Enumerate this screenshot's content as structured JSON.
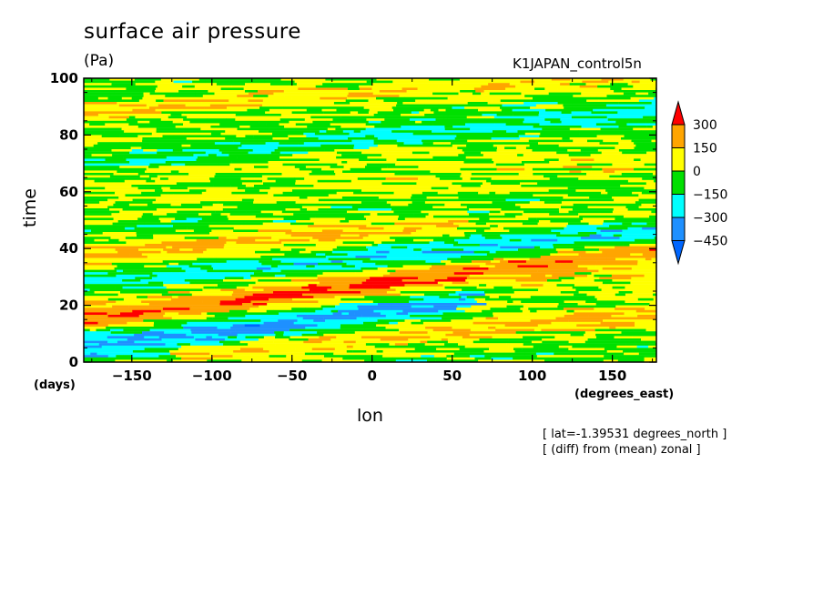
{
  "chart_data": {
    "type": "heatmap",
    "title": "surface air pressure",
    "units": "(Pa)",
    "experiment": "K1JAPAN_control5n",
    "xlabel": "lon",
    "ylabel": "time",
    "x_unit": "(degrees_east)",
    "y_unit": "(days)",
    "xlim": [
      -180,
      177.5
    ],
    "ylim": [
      0,
      100
    ],
    "x_ticks": [
      "-150",
      "-100",
      "-50",
      "0",
      "50",
      "100",
      "150"
    ],
    "y_ticks": [
      "0",
      "20",
      "40",
      "60",
      "80",
      "100"
    ],
    "colorbar": {
      "levels": [
        "300",
        "150",
        "0",
        "-150",
        "-300",
        "-450"
      ],
      "colors": [
        "#ff0000",
        "#ffa500",
        "#ffff00",
        "#00e000",
        "#00ffff",
        "#1e90ff",
        "#0066ff"
      ]
    },
    "notes": [
      "[ lat=-1.39531 degrees_north ]",
      "[ (diff) from (mean) zonal ]"
    ],
    "features": [
      {
        "desc": "positive anomaly band",
        "lon_start": -180,
        "time_start": 15,
        "lon_end": 177.5,
        "time_end": 40,
        "value": 250
      },
      {
        "desc": "positive anomaly band",
        "lon_start": -180,
        "time_start": 38,
        "lon_end": 60,
        "time_end": 49,
        "value": 170
      },
      {
        "desc": "positive anomaly band",
        "lon_start": -120,
        "time_start": 2,
        "lon_end": 177.5,
        "time_end": 17,
        "value": 150
      },
      {
        "desc": "negative anomaly band",
        "lon_start": -180,
        "time_start": 5,
        "lon_end": 60,
        "time_end": 22,
        "value": -320
      },
      {
        "desc": "negative anomaly band",
        "lon_start": -180,
        "time_start": 28,
        "lon_end": 177.5,
        "time_end": 46,
        "value": -220
      },
      {
        "desc": "negative anomaly band",
        "lon_start": -180,
        "time_start": 70,
        "lon_end": 177.5,
        "time_end": 88,
        "value": -200
      },
      {
        "desc": "positive anomaly band",
        "lon_start": -180,
        "time_start": 88,
        "lon_end": 177.5,
        "time_end": 100,
        "value": 140
      }
    ]
  }
}
